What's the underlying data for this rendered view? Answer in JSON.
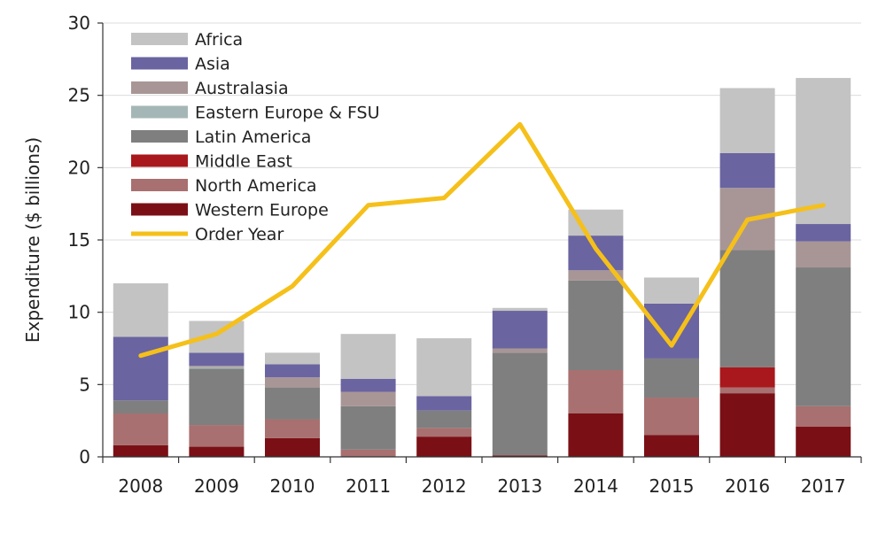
{
  "chart_data": {
    "type": "bar",
    "stacked": true,
    "ylabel": "Expenditure ($ billions)",
    "ylim": [
      0,
      30
    ],
    "yticks": [
      0,
      5,
      10,
      15,
      20,
      25,
      30
    ],
    "grid": "horizontal",
    "legend_position": "top-left",
    "categories": [
      "2008",
      "2009",
      "2010",
      "2011",
      "2012",
      "2013",
      "2014",
      "2015",
      "2016",
      "2017"
    ],
    "series": [
      {
        "name": "Western Europe",
        "color": "#7a1016",
        "values": [
          0.8,
          0.7,
          1.3,
          0.0,
          1.4,
          0.1,
          3.0,
          1.5,
          4.4,
          2.1
        ]
      },
      {
        "name": "North America",
        "color": "#a87070",
        "values": [
          2.2,
          1.5,
          1.3,
          0.5,
          0.6,
          0.0,
          3.0,
          2.6,
          0.4,
          1.4
        ]
      },
      {
        "name": "Middle East",
        "color": "#a8181c",
        "values": [
          0.0,
          0.0,
          0.0,
          0.0,
          0.0,
          0.0,
          0.0,
          0.0,
          1.4,
          0.0
        ]
      },
      {
        "name": "Latin America",
        "color": "#7f7f7f",
        "values": [
          0.9,
          3.9,
          2.2,
          3.0,
          1.2,
          7.1,
          6.2,
          2.7,
          8.1,
          9.6
        ]
      },
      {
        "name": "Eastern Europe & FSU",
        "color": "#a5b6b6",
        "values": [
          0.0,
          0.1,
          0.0,
          0.0,
          0.0,
          0.0,
          0.0,
          0.0,
          0.0,
          0.0
        ]
      },
      {
        "name": "Australasia",
        "color": "#a89696",
        "values": [
          0.0,
          0.1,
          0.7,
          1.0,
          0.0,
          0.3,
          0.7,
          0.0,
          4.3,
          1.8
        ]
      },
      {
        "name": "Asia",
        "color": "#6a64a0",
        "values": [
          4.4,
          0.9,
          0.9,
          0.9,
          1.0,
          2.6,
          2.4,
          3.8,
          2.4,
          1.2
        ]
      },
      {
        "name": "Africa",
        "color": "#c3c3c3",
        "values": [
          3.7,
          2.2,
          0.8,
          3.1,
          4.0,
          0.2,
          1.8,
          1.8,
          4.5,
          10.1
        ]
      }
    ],
    "line": {
      "name": "Order Year",
      "color": "#f5c01a",
      "values": [
        7.0,
        8.5,
        11.8,
        17.4,
        17.9,
        23.0,
        14.4,
        7.7,
        16.4,
        17.4
      ]
    },
    "legend_order": [
      "Africa",
      "Asia",
      "Australasia",
      "Eastern Europe & FSU",
      "Latin America",
      "Middle East",
      "North America",
      "Western Europe",
      "Order Year"
    ]
  }
}
